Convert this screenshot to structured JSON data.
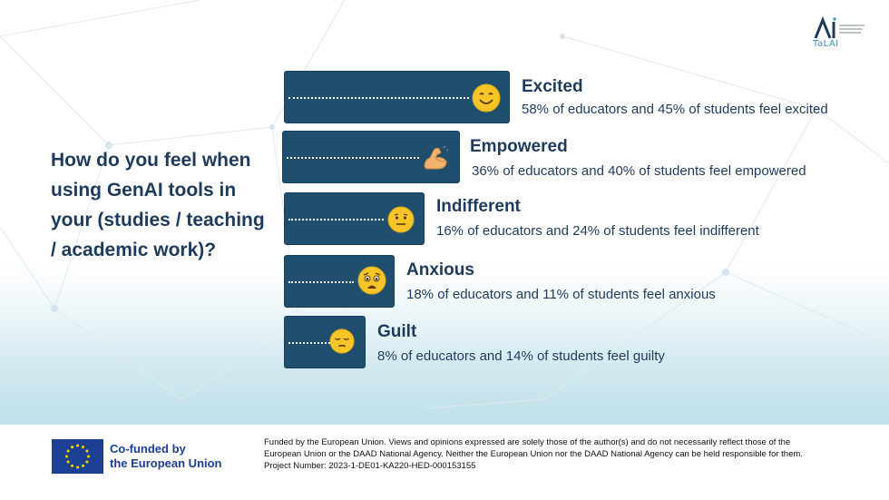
{
  "logo": {
    "text": "TaLAI",
    "icon": "ai-logo-icon"
  },
  "question": "How do you feel when using GenAI tools in your (studies / teaching / academic work)?",
  "feelings": [
    {
      "label": "Excited",
      "description": "58% of educators and 45% of students feel excited",
      "icon": "smiling-face-icon",
      "educators_pct": 58,
      "students_pct": 45
    },
    {
      "label": "Empowered",
      "description": "36% of educators and 40% of students feel empowered",
      "icon": "flexed-biceps-icon",
      "educators_pct": 36,
      "students_pct": 40
    },
    {
      "label": "Indifferent",
      "description": "16% of educators and 24% of students feel indifferent",
      "icon": "neutral-face-icon",
      "educators_pct": 16,
      "students_pct": 24
    },
    {
      "label": "Anxious",
      "description": "18% of educators and 11% of students feel anxious",
      "icon": "anxious-face-icon",
      "educators_pct": 18,
      "students_pct": 11
    },
    {
      "label": "Guilt",
      "description": "8% of educators and 14% of students feel guilty",
      "icon": "pensive-face-icon",
      "educators_pct": 8,
      "students_pct": 14
    }
  ],
  "footer": {
    "eu_line1": "Co-funded by",
    "eu_line2": "the European Union",
    "disclaimer_line1": "Funded by the European Union. Views and opinions expressed are solely those of the author(s) and do not necessarily reflect those of the",
    "disclaimer_line2": "European Union or the DAAD National Agency. Neither the European Union nor the DAAD National Agency can be held responsible for them.",
    "disclaimer_line3": "Project Number: 2023-1-DE01-KA220-HED-000153155"
  },
  "colors": {
    "bar": "#1f4e6e",
    "text": "#1f3b5c",
    "eu_blue": "#1d3f94"
  }
}
